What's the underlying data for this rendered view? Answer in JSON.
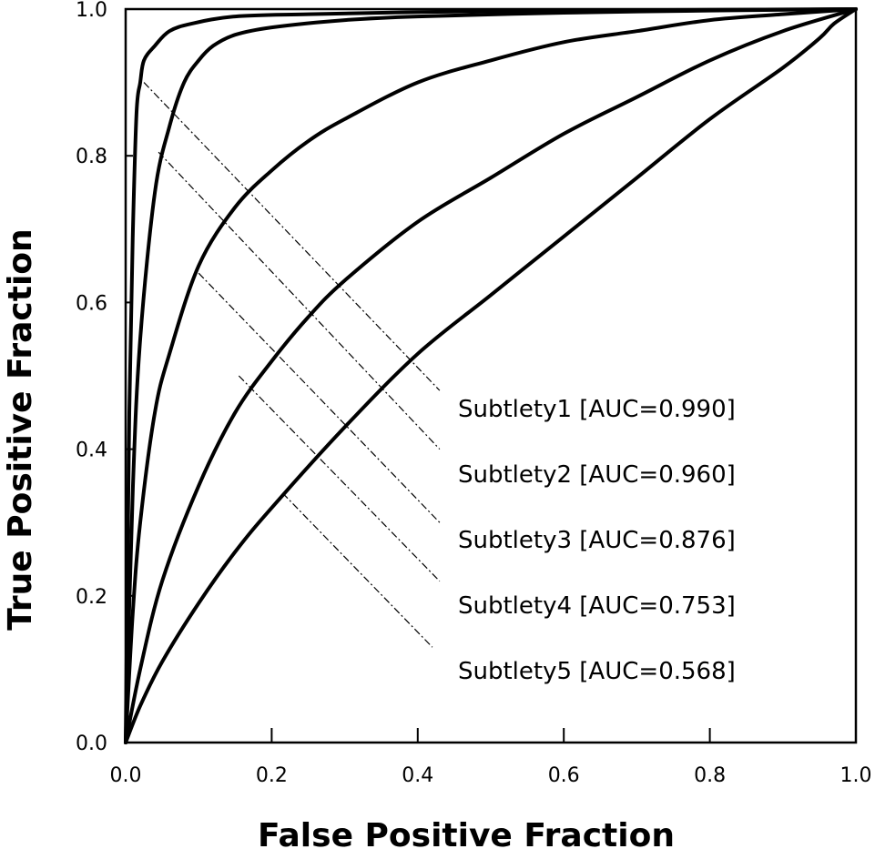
{
  "chart_data": {
    "type": "line",
    "title": "",
    "xlabel": "False Positive Fraction",
    "ylabel": "True Positive Fraction",
    "xlim": [
      0.0,
      1.0
    ],
    "ylim": [
      0.0,
      1.0
    ],
    "xticks": [
      "0.0",
      "0.2",
      "0.4",
      "0.6",
      "0.8",
      "1.0"
    ],
    "yticks": [
      "0.0",
      "0.2",
      "0.4",
      "0.6",
      "0.8",
      "1.0"
    ],
    "grid": false,
    "legend_placement": "center-right",
    "series": [
      {
        "name": "Subtlety1 [AUC=0.990]",
        "x": [
          0.0,
          0.005,
          0.01,
          0.015,
          0.02,
          0.025,
          0.04,
          0.06,
          0.09,
          0.15,
          0.25,
          0.4,
          0.6,
          0.8,
          1.0
        ],
        "y": [
          0.0,
          0.45,
          0.7,
          0.86,
          0.9,
          0.93,
          0.95,
          0.97,
          0.98,
          0.99,
          0.993,
          0.996,
          0.998,
          0.999,
          1.0
        ]
      },
      {
        "name": "Subtlety2 [AUC=0.960]",
        "x": [
          0.0,
          0.01,
          0.02,
          0.04,
          0.06,
          0.08,
          0.1,
          0.12,
          0.15,
          0.2,
          0.3,
          0.4,
          0.6,
          0.8,
          1.0
        ],
        "y": [
          0.0,
          0.35,
          0.55,
          0.75,
          0.84,
          0.9,
          0.93,
          0.95,
          0.965,
          0.975,
          0.985,
          0.99,
          0.995,
          0.998,
          1.0
        ]
      },
      {
        "name": "Subtlety3 [AUC=0.876]",
        "x": [
          0.0,
          0.01,
          0.02,
          0.04,
          0.06,
          0.1,
          0.15,
          0.2,
          0.25,
          0.3,
          0.4,
          0.5,
          0.6,
          0.7,
          0.8,
          0.9,
          1.0
        ],
        "y": [
          0.0,
          0.18,
          0.3,
          0.45,
          0.53,
          0.65,
          0.73,
          0.78,
          0.82,
          0.85,
          0.9,
          0.93,
          0.955,
          0.97,
          0.985,
          0.993,
          1.0
        ]
      },
      {
        "name": "Subtlety4 [AUC=0.753]",
        "x": [
          0.0,
          0.02,
          0.05,
          0.1,
          0.15,
          0.2,
          0.25,
          0.3,
          0.4,
          0.5,
          0.6,
          0.7,
          0.8,
          0.9,
          1.0
        ],
        "y": [
          0.0,
          0.1,
          0.22,
          0.35,
          0.45,
          0.52,
          0.58,
          0.63,
          0.71,
          0.77,
          0.83,
          0.88,
          0.93,
          0.97,
          1.0
        ]
      },
      {
        "name": "Subtlety5 [AUC=0.568]",
        "x": [
          0.0,
          0.02,
          0.05,
          0.1,
          0.15,
          0.2,
          0.3,
          0.4,
          0.5,
          0.6,
          0.7,
          0.8,
          0.9,
          0.95,
          0.97,
          1.0
        ],
        "y": [
          0.0,
          0.05,
          0.11,
          0.19,
          0.26,
          0.32,
          0.43,
          0.53,
          0.61,
          0.69,
          0.77,
          0.85,
          0.92,
          0.96,
          0.98,
          1.0
        ]
      }
    ],
    "annotations": [
      {
        "label": "Subtlety1 [AUC=0.990]",
        "from": [
          0.025,
          0.9
        ],
        "to": [
          0.43,
          0.48
        ]
      },
      {
        "label": "Subtlety2 [AUC=0.960]",
        "from": [
          0.045,
          0.805
        ],
        "to": [
          0.43,
          0.4
        ]
      },
      {
        "label": "Subtlety3 [AUC=0.876]",
        "from": [
          0.1,
          0.64
        ],
        "to": [
          0.43,
          0.3
        ]
      },
      {
        "label": "Subtlety4 [AUC=0.753]",
        "from": [
          0.155,
          0.5
        ],
        "to": [
          0.43,
          0.22
        ]
      },
      {
        "label": "Subtlety5 [AUC=0.568]",
        "from": [
          0.215,
          0.34
        ],
        "to": [
          0.42,
          0.13
        ]
      }
    ]
  }
}
